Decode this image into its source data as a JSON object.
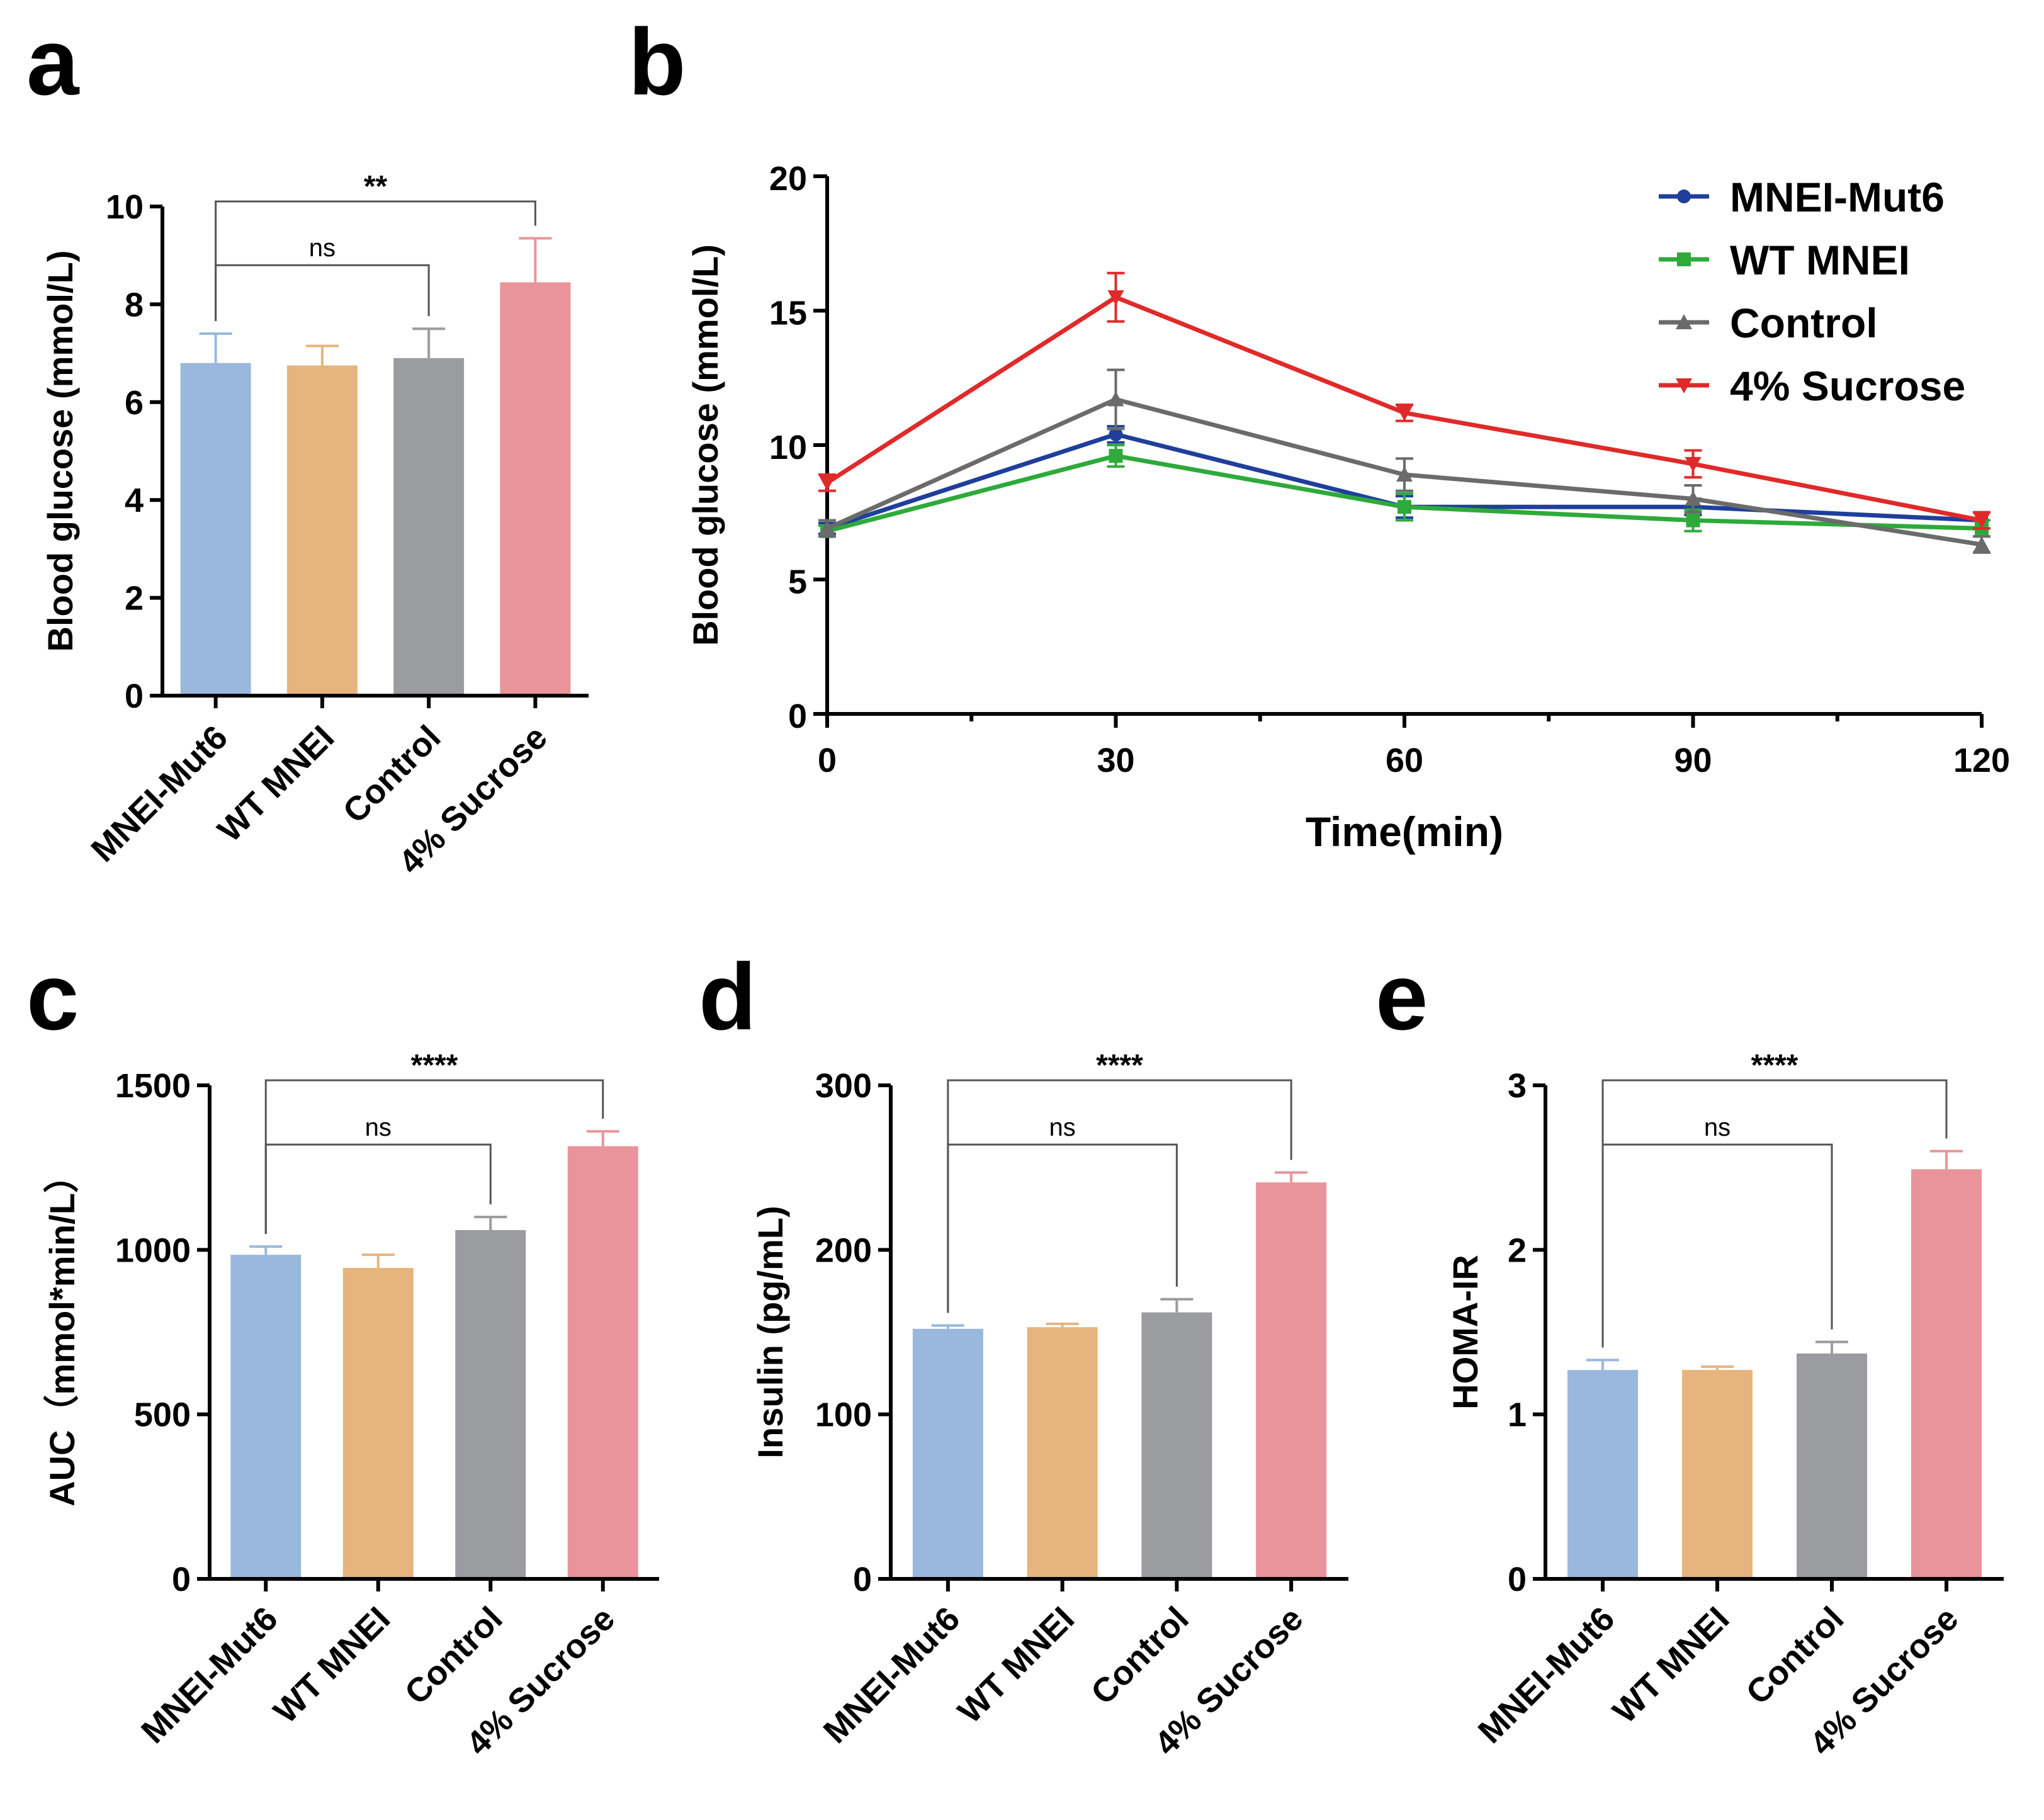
{
  "colors": {
    "MNEI-Mut6_bar": "#9ab8dd",
    "WT MNEI_bar": "#e6b47c",
    "Control_bar": "#9b9c9f",
    "4% Sucrose_bar": "#e9949a",
    "MNEI-Mut6_line": "#1f3f9b",
    "WT MNEI_line": "#2eaa3a",
    "Control_line": "#6b6b6b",
    "4% Sucrose_line": "#e02a2a"
  },
  "chart_data": [
    {
      "id": "a",
      "panel_label": "a",
      "type": "bar",
      "categories": [
        "MNEI-Mut6",
        "WT MNEI",
        "Control",
        "4% Sucrose"
      ],
      "values": [
        6.8,
        6.75,
        6.9,
        8.45
      ],
      "errors": [
        0.6,
        0.4,
        0.6,
        0.9
      ],
      "ylabel": "Blood glucose (mmol/L)",
      "ylim": [
        0,
        10
      ],
      "yticks": [
        0,
        2,
        4,
        6,
        8,
        10
      ],
      "annotations": [
        {
          "from": 0,
          "to": 2,
          "label": "ns"
        },
        {
          "from": 0,
          "to": 3,
          "label": "**"
        }
      ]
    },
    {
      "id": "b",
      "panel_label": "b",
      "type": "line",
      "x": [
        0,
        30,
        60,
        90,
        120
      ],
      "xlabel": "Time(min)",
      "ylabel": "Blood glucose (mmol/L)",
      "xlim": [
        0,
        120
      ],
      "ylim": [
        0,
        20
      ],
      "xticks": [
        0,
        30,
        60,
        90,
        120
      ],
      "yticks": [
        0,
        5,
        10,
        15,
        20
      ],
      "legend_position": "top-right",
      "series": [
        {
          "name": "MNEI-Mut6",
          "marker": "circle",
          "values": [
            6.9,
            10.4,
            7.7,
            7.7,
            7.2
          ],
          "errors": [
            0.2,
            0.3,
            0.4,
            0.3,
            0.3
          ]
        },
        {
          "name": "WT MNEI",
          "marker": "square",
          "values": [
            6.8,
            9.6,
            7.7,
            7.2,
            6.9
          ],
          "errors": [
            0.2,
            0.4,
            0.5,
            0.4,
            0.3
          ]
        },
        {
          "name": "Control",
          "marker": "triangle-up",
          "values": [
            6.9,
            11.7,
            8.9,
            8.0,
            6.3
          ],
          "errors": [
            0.3,
            1.1,
            0.6,
            0.5,
            0.3
          ]
        },
        {
          "name": "4% Sucrose",
          "marker": "triangle-down",
          "values": [
            8.6,
            15.5,
            11.2,
            9.3,
            7.2
          ],
          "errors": [
            0.3,
            0.9,
            0.3,
            0.5,
            0.3
          ]
        }
      ]
    },
    {
      "id": "c",
      "panel_label": "c",
      "type": "bar",
      "categories": [
        "MNEI-Mut6",
        "WT MNEI",
        "Control",
        "4% Sucrose"
      ],
      "values": [
        985,
        945,
        1060,
        1315
      ],
      "errors": [
        25,
        40,
        40,
        45
      ],
      "ylabel": "AUC（mmol*min/L）",
      "ylim": [
        0,
        1500
      ],
      "yticks": [
        0,
        500,
        1000,
        1500
      ],
      "annotations": [
        {
          "from": 0,
          "to": 2,
          "label": "ns"
        },
        {
          "from": 0,
          "to": 3,
          "label": "****"
        }
      ]
    },
    {
      "id": "d",
      "panel_label": "d",
      "type": "bar",
      "categories": [
        "MNEI-Mut6",
        "WT MNEI",
        "Control",
        "4% Sucrose"
      ],
      "values": [
        152,
        153,
        162,
        241
      ],
      "errors": [
        2,
        2,
        8,
        6
      ],
      "ylabel": "Insulin (pg/mL)",
      "ylim": [
        0,
        300
      ],
      "yticks": [
        0,
        100,
        200,
        300
      ],
      "annotations": [
        {
          "from": 0,
          "to": 2,
          "label": "ns"
        },
        {
          "from": 0,
          "to": 3,
          "label": "****"
        }
      ]
    },
    {
      "id": "e",
      "panel_label": "e",
      "type": "bar",
      "categories": [
        "MNEI-Mut6",
        "WT MNEI",
        "Control",
        "4% Sucrose"
      ],
      "values": [
        1.27,
        1.27,
        1.37,
        2.49
      ],
      "errors": [
        0.06,
        0.02,
        0.07,
        0.11
      ],
      "ylabel": "HOMA-IR",
      "ylim": [
        0,
        3
      ],
      "yticks": [
        0,
        1,
        2,
        3
      ],
      "annotations": [
        {
          "from": 0,
          "to": 2,
          "label": "ns"
        },
        {
          "from": 0,
          "to": 3,
          "label": "****"
        }
      ]
    }
  ]
}
